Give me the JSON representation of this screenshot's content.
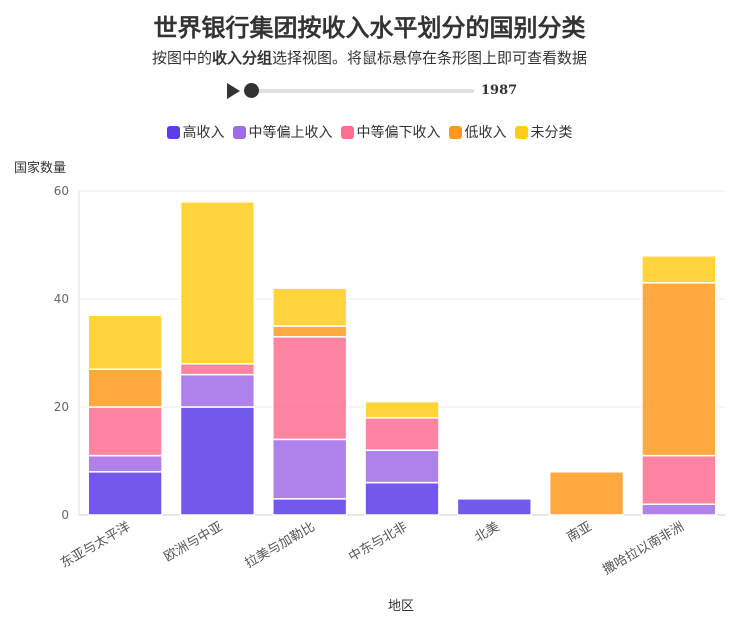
{
  "header": {
    "title": "世界银行集团按收入水平划分的国别分类",
    "subtitle_pre": "按图中的",
    "subtitle_bold": "收入分组",
    "subtitle_post": "选择视图。将鼠标悬停在条形图上即可查看数据"
  },
  "player": {
    "year": "1987",
    "progress": 0.0
  },
  "colors": {
    "高收入": "#5b3ce8",
    "中等偏上收入": "#a06be8",
    "中等偏下收入": "#ff6f91",
    "低收入": "#ff9a1f",
    "未分类": "#ffcc1a"
  },
  "chart_data": {
    "type": "bar",
    "stacked": true,
    "xlabel": "地区",
    "ylabel": "国家数量",
    "ylim": [
      0,
      60
    ],
    "yticks": [
      0,
      20,
      40,
      60
    ],
    "grid": true,
    "legend_position": "top",
    "categories": [
      "东亚与太平洋",
      "欧洲与中亚",
      "拉美与加勒比",
      "中东与北非",
      "北美",
      "南亚",
      "撒哈拉以南非洲"
    ],
    "series": [
      {
        "name": "高收入",
        "values": [
          8,
          20,
          3,
          6,
          3,
          0,
          0
        ]
      },
      {
        "name": "中等偏上收入",
        "values": [
          3,
          6,
          11,
          6,
          0,
          0,
          2
        ]
      },
      {
        "name": "中等偏下收入",
        "values": [
          9,
          2,
          19,
          6,
          0,
          0,
          9
        ]
      },
      {
        "name": "低收入",
        "values": [
          7,
          0,
          2,
          0,
          0,
          8,
          32
        ]
      },
      {
        "name": "未分类",
        "values": [
          10,
          30,
          7,
          3,
          0,
          0,
          5
        ]
      }
    ]
  }
}
